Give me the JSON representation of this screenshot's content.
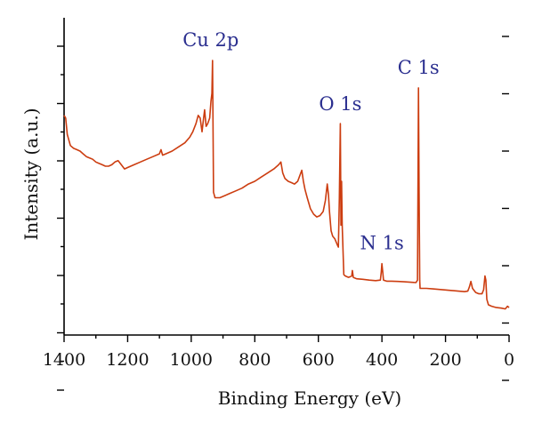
{
  "chart_data": {
    "type": "line",
    "xlabel": "Binding Energy (eV)",
    "ylabel": "Intensity (a.u.)",
    "xlim": [
      1400,
      0
    ],
    "ylim": [
      0,
      100
    ],
    "x_ticks": [
      1400,
      1200,
      1000,
      800,
      600,
      400,
      200,
      0
    ],
    "x_tick_labels": [
      "1400",
      "1200",
      "1000",
      "800",
      "600",
      "400",
      "200",
      "0"
    ],
    "y_ticks_count": 7,
    "y_tick_labels_shown": false,
    "grid": false,
    "colors": {
      "line": "#cc3d10",
      "annotation": "#2b2f8f",
      "axis": "#000000"
    },
    "annotations": [
      {
        "text": "Cu 2p",
        "x": 933,
        "y": 100
      },
      {
        "text": "O 1s",
        "x": 531,
        "y": 77
      },
      {
        "text": "N 1s",
        "x": 400,
        "y": 26
      },
      {
        "text": "C 1s",
        "x": 285,
        "y": 90
      }
    ],
    "series": [
      {
        "values": [
          [
            1400,
            80
          ],
          [
            1395,
            79
          ],
          [
            1390,
            73
          ],
          [
            1380,
            69
          ],
          [
            1370,
            68
          ],
          [
            1360,
            67.5
          ],
          [
            1350,
            67
          ],
          [
            1340,
            66
          ],
          [
            1330,
            65
          ],
          [
            1320,
            64.5
          ],
          [
            1310,
            64
          ],
          [
            1300,
            63
          ],
          [
            1290,
            62.5
          ],
          [
            1280,
            62
          ],
          [
            1270,
            61.5
          ],
          [
            1260,
            61.5
          ],
          [
            1250,
            62
          ],
          [
            1240,
            63
          ],
          [
            1230,
            63.5
          ],
          [
            1220,
            62
          ],
          [
            1210,
            60.5
          ],
          [
            1200,
            61
          ],
          [
            1180,
            62
          ],
          [
            1160,
            63
          ],
          [
            1140,
            64
          ],
          [
            1120,
            65
          ],
          [
            1100,
            66
          ],
          [
            1095,
            67.5
          ],
          [
            1090,
            65.5
          ],
          [
            1080,
            66
          ],
          [
            1060,
            67
          ],
          [
            1040,
            68.5
          ],
          [
            1020,
            70
          ],
          [
            1005,
            72
          ],
          [
            995,
            74
          ],
          [
            985,
            77
          ],
          [
            978,
            80
          ],
          [
            972,
            79
          ],
          [
            966,
            74
          ],
          [
            962,
            78
          ],
          [
            958,
            82
          ],
          [
            953,
            76
          ],
          [
            948,
            77
          ],
          [
            942,
            79
          ],
          [
            938,
            85
          ],
          [
            935,
            88
          ],
          [
            933,
            100
          ],
          [
            931,
            70
          ],
          [
            930,
            52
          ],
          [
            925,
            50
          ],
          [
            910,
            50
          ],
          [
            900,
            50.5
          ],
          [
            880,
            51.5
          ],
          [
            860,
            52.5
          ],
          [
            840,
            53.5
          ],
          [
            820,
            55
          ],
          [
            800,
            56
          ],
          [
            780,
            57.5
          ],
          [
            760,
            59
          ],
          [
            740,
            60.5
          ],
          [
            725,
            62
          ],
          [
            718,
            63
          ],
          [
            712,
            59
          ],
          [
            705,
            57
          ],
          [
            695,
            56
          ],
          [
            685,
            55.5
          ],
          [
            675,
            55
          ],
          [
            665,
            56
          ],
          [
            657,
            58.5
          ],
          [
            652,
            60
          ],
          [
            647,
            56
          ],
          [
            642,
            53
          ],
          [
            635,
            50
          ],
          [
            625,
            46
          ],
          [
            615,
            44
          ],
          [
            605,
            43
          ],
          [
            595,
            43.5
          ],
          [
            585,
            45
          ],
          [
            578,
            49
          ],
          [
            572,
            55
          ],
          [
            568,
            51
          ],
          [
            565,
            45
          ],
          [
            560,
            38
          ],
          [
            555,
            36
          ],
          [
            548,
            35
          ],
          [
            541,
            33
          ],
          [
            537,
            32
          ],
          [
            534,
            50
          ],
          [
            531,
            77
          ],
          [
            529,
            40
          ],
          [
            527,
            56
          ],
          [
            525,
            40
          ],
          [
            520,
            22
          ],
          [
            515,
            21.5
          ],
          [
            505,
            21
          ],
          [
            495,
            21.5
          ],
          [
            493,
            23.5
          ],
          [
            490,
            21
          ],
          [
            480,
            20.5
          ],
          [
            460,
            20.3
          ],
          [
            440,
            20
          ],
          [
            420,
            19.8
          ],
          [
            405,
            20
          ],
          [
            402,
            23
          ],
          [
            400,
            26
          ],
          [
            398,
            23.5
          ],
          [
            395,
            20
          ],
          [
            385,
            19.6
          ],
          [
            370,
            19.6
          ],
          [
            350,
            19.5
          ],
          [
            330,
            19.4
          ],
          [
            305,
            19.2
          ],
          [
            293,
            19.1
          ],
          [
            288,
            20
          ],
          [
            287,
            45
          ],
          [
            285,
            90
          ],
          [
            283,
            52
          ],
          [
            281,
            20
          ],
          [
            280,
            17
          ],
          [
            260,
            17
          ],
          [
            240,
            16.8
          ],
          [
            220,
            16.6
          ],
          [
            200,
            16.4
          ],
          [
            180,
            16.2
          ],
          [
            160,
            16
          ],
          [
            140,
            15.8
          ],
          [
            130,
            16
          ],
          [
            125,
            17.5
          ],
          [
            120,
            19.5
          ],
          [
            115,
            17
          ],
          [
            105,
            15.5
          ],
          [
            95,
            15
          ],
          [
            85,
            15
          ],
          [
            80,
            16.5
          ],
          [
            76,
            21.5
          ],
          [
            73,
            20
          ],
          [
            70,
            13
          ],
          [
            65,
            11
          ],
          [
            55,
            10.5
          ],
          [
            40,
            10
          ],
          [
            25,
            9.8
          ],
          [
            12,
            9.5
          ],
          [
            5,
            10.5
          ],
          [
            0,
            10
          ]
        ]
      }
    ]
  }
}
